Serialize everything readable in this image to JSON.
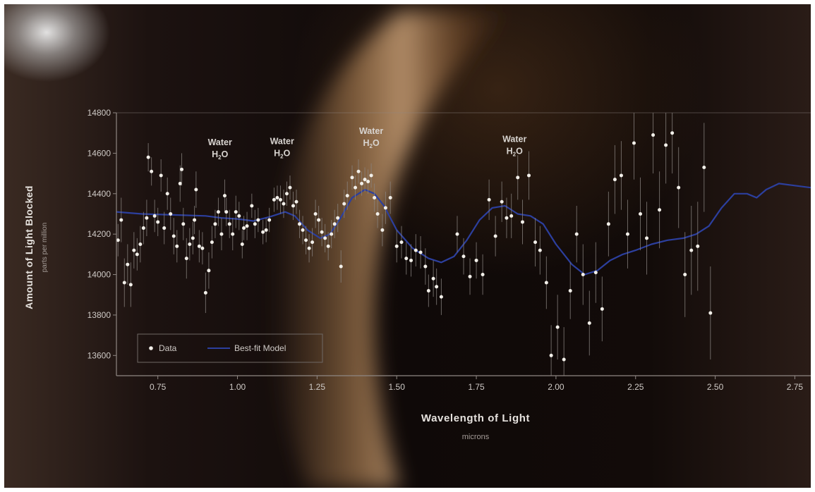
{
  "chart_data": {
    "type": "scatter",
    "xlabel": "Wavelength of Light",
    "xunit": "microns",
    "ylabel": "Amount of Light Blocked",
    "yunit": "parts per million",
    "xlim": [
      0.62,
      2.8
    ],
    "ylim": [
      13500,
      14800
    ],
    "xticks": [
      0.75,
      1.0,
      1.25,
      1.5,
      1.75,
      2.0,
      2.25,
      2.5,
      2.75
    ],
    "xtick_labels": [
      "0.75",
      "1.00",
      "1.25",
      "1.50",
      "1.75",
      "2.00",
      "2.25",
      "2.50",
      "2.75"
    ],
    "yticks": [
      13600,
      13800,
      14000,
      14200,
      14400,
      14600,
      14800
    ],
    "ytick_labels": [
      "13600",
      "13800",
      "14000",
      "14200",
      "14400",
      "14600",
      "14800"
    ],
    "grid": false,
    "legend": {
      "placement": "bottom-left",
      "entries": [
        {
          "label": "Data",
          "marker": "dot"
        },
        {
          "label": "Best-fit Model",
          "marker": "line"
        }
      ]
    },
    "colors": {
      "data": "#f2efe9",
      "errorbar": "#8a8480",
      "model": "#2c3f9e",
      "axis": "#8f8783"
    },
    "annotations": [
      {
        "line1": "Water",
        "molecule": "H",
        "subscript": "2",
        "suffix": "O",
        "x": 0.945,
        "y": 14640
      },
      {
        "line1": "Water",
        "molecule": "H",
        "subscript": "2",
        "suffix": "O",
        "x": 1.14,
        "y": 14645
      },
      {
        "line1": "Water",
        "molecule": "H",
        "subscript": "2",
        "suffix": "O",
        "x": 1.42,
        "y": 14695
      },
      {
        "line1": "Water",
        "molecule": "H",
        "subscript": "2",
        "suffix": "O",
        "x": 1.87,
        "y": 14655
      }
    ],
    "series": [
      {
        "name": "Data",
        "points": [
          [
            0.625,
            14170,
            80
          ],
          [
            0.635,
            14270,
            110
          ],
          [
            0.645,
            13960,
            120
          ],
          [
            0.655,
            14050,
            100
          ],
          [
            0.665,
            13950,
            110
          ],
          [
            0.675,
            14120,
            90
          ],
          [
            0.685,
            14100,
            80
          ],
          [
            0.695,
            14150,
            90
          ],
          [
            0.705,
            14230,
            80
          ],
          [
            0.715,
            14280,
            90
          ],
          [
            0.72,
            14580,
            70
          ],
          [
            0.73,
            14510,
            70
          ],
          [
            0.74,
            14290,
            80
          ],
          [
            0.75,
            14260,
            70
          ],
          [
            0.76,
            14490,
            80
          ],
          [
            0.77,
            14230,
            80
          ],
          [
            0.78,
            14400,
            80
          ],
          [
            0.79,
            14300,
            80
          ],
          [
            0.8,
            14190,
            90
          ],
          [
            0.81,
            14140,
            80
          ],
          [
            0.82,
            14450,
            90
          ],
          [
            0.825,
            14520,
            80
          ],
          [
            0.83,
            14250,
            80
          ],
          [
            0.84,
            14080,
            100
          ],
          [
            0.85,
            14150,
            80
          ],
          [
            0.86,
            14180,
            80
          ],
          [
            0.865,
            14270,
            70
          ],
          [
            0.87,
            14420,
            90
          ],
          [
            0.88,
            14140,
            80
          ],
          [
            0.89,
            14130,
            80
          ],
          [
            0.9,
            13910,
            100
          ],
          [
            0.91,
            14020,
            90
          ],
          [
            0.92,
            14160,
            80
          ],
          [
            0.93,
            14250,
            70
          ],
          [
            0.94,
            14310,
            70
          ],
          [
            0.95,
            14200,
            80
          ],
          [
            0.96,
            14390,
            80
          ],
          [
            0.965,
            14310,
            70
          ],
          [
            0.975,
            14250,
            70
          ],
          [
            0.985,
            14200,
            80
          ],
          [
            0.995,
            14310,
            80
          ],
          [
            1.005,
            14290,
            70
          ],
          [
            1.015,
            14150,
            70
          ],
          [
            1.02,
            14230,
            60
          ],
          [
            1.03,
            14240,
            70
          ],
          [
            1.045,
            14340,
            60
          ],
          [
            1.055,
            14250,
            70
          ],
          [
            1.065,
            14270,
            60
          ],
          [
            1.08,
            14210,
            60
          ],
          [
            1.09,
            14220,
            60
          ],
          [
            1.1,
            14270,
            60
          ],
          [
            1.115,
            14370,
            60
          ],
          [
            1.125,
            14380,
            60
          ],
          [
            1.135,
            14370,
            70
          ],
          [
            1.145,
            14350,
            70
          ],
          [
            1.155,
            14400,
            60
          ],
          [
            1.165,
            14430,
            60
          ],
          [
            1.175,
            14340,
            70
          ],
          [
            1.185,
            14360,
            60
          ],
          [
            1.195,
            14250,
            70
          ],
          [
            1.205,
            14220,
            70
          ],
          [
            1.215,
            14170,
            70
          ],
          [
            1.225,
            14130,
            70
          ],
          [
            1.235,
            14160,
            70
          ],
          [
            1.245,
            14300,
            70
          ],
          [
            1.255,
            14270,
            70
          ],
          [
            1.265,
            14210,
            70
          ],
          [
            1.275,
            14180,
            70
          ],
          [
            1.285,
            14140,
            70
          ],
          [
            1.295,
            14200,
            70
          ],
          [
            1.305,
            14250,
            70
          ],
          [
            1.315,
            14280,
            70
          ],
          [
            1.325,
            14040,
            80
          ],
          [
            1.335,
            14350,
            70
          ],
          [
            1.345,
            14390,
            70
          ],
          [
            1.36,
            14480,
            60
          ],
          [
            1.37,
            14430,
            60
          ],
          [
            1.38,
            14510,
            60
          ],
          [
            1.39,
            14450,
            60
          ],
          [
            1.4,
            14470,
            60
          ],
          [
            1.41,
            14460,
            60
          ],
          [
            1.42,
            14490,
            60
          ],
          [
            1.43,
            14380,
            70
          ],
          [
            1.44,
            14300,
            70
          ],
          [
            1.455,
            14220,
            80
          ],
          [
            1.465,
            14330,
            80
          ],
          [
            1.48,
            14380,
            80
          ],
          [
            1.5,
            14140,
            80
          ],
          [
            1.515,
            14160,
            80
          ],
          [
            1.53,
            14080,
            80
          ],
          [
            1.545,
            14070,
            80
          ],
          [
            1.56,
            14120,
            80
          ],
          [
            1.575,
            14110,
            80
          ],
          [
            1.59,
            14040,
            90
          ],
          [
            1.6,
            13920,
            80
          ],
          [
            1.615,
            13980,
            90
          ],
          [
            1.625,
            13940,
            90
          ],
          [
            1.64,
            13890,
            90
          ],
          [
            1.69,
            14200,
            90
          ],
          [
            1.71,
            14090,
            90
          ],
          [
            1.73,
            13990,
            90
          ],
          [
            1.75,
            14070,
            90
          ],
          [
            1.77,
            14000,
            100
          ],
          [
            1.79,
            14370,
            100
          ],
          [
            1.81,
            14190,
            100
          ],
          [
            1.83,
            14360,
            100
          ],
          [
            1.845,
            14280,
            100
          ],
          [
            1.86,
            14290,
            110
          ],
          [
            1.88,
            14480,
            110
          ],
          [
            1.895,
            14260,
            110
          ],
          [
            1.915,
            14490,
            120
          ],
          [
            1.935,
            14160,
            120
          ],
          [
            1.95,
            14120,
            120
          ],
          [
            1.97,
            13960,
            130
          ],
          [
            1.985,
            13600,
            150
          ],
          [
            2.005,
            13740,
            160
          ],
          [
            2.025,
            13580,
            160
          ],
          [
            2.045,
            13920,
            140
          ],
          [
            2.065,
            14200,
            140
          ],
          [
            2.085,
            14000,
            150
          ],
          [
            2.105,
            13760,
            160
          ],
          [
            2.125,
            14010,
            150
          ],
          [
            2.145,
            13830,
            160
          ],
          [
            2.165,
            14250,
            160
          ],
          [
            2.185,
            14470,
            170
          ],
          [
            2.205,
            14490,
            170
          ],
          [
            2.225,
            14200,
            170
          ],
          [
            2.245,
            14650,
            180
          ],
          [
            2.265,
            14300,
            180
          ],
          [
            2.285,
            14180,
            180
          ],
          [
            2.305,
            14690,
            190
          ],
          [
            2.325,
            14320,
            190
          ],
          [
            2.345,
            14640,
            190
          ],
          [
            2.365,
            14700,
            200
          ],
          [
            2.385,
            14430,
            200
          ],
          [
            2.405,
            14000,
            210
          ],
          [
            2.425,
            14120,
            220
          ],
          [
            2.445,
            14140,
            220
          ],
          [
            2.465,
            14530,
            220
          ],
          [
            2.485,
            13810,
            230
          ]
        ]
      },
      {
        "name": "Best-fit Model",
        "points": [
          [
            0.62,
            14310
          ],
          [
            0.7,
            14300
          ],
          [
            0.8,
            14295
          ],
          [
            0.9,
            14290
          ],
          [
            0.95,
            14280
          ],
          [
            1.0,
            14275
          ],
          [
            1.05,
            14265
          ],
          [
            1.1,
            14285
          ],
          [
            1.15,
            14310
          ],
          [
            1.18,
            14290
          ],
          [
            1.22,
            14220
          ],
          [
            1.26,
            14180
          ],
          [
            1.29,
            14200
          ],
          [
            1.32,
            14270
          ],
          [
            1.36,
            14380
          ],
          [
            1.4,
            14420
          ],
          [
            1.43,
            14400
          ],
          [
            1.46,
            14340
          ],
          [
            1.5,
            14220
          ],
          [
            1.55,
            14130
          ],
          [
            1.6,
            14080
          ],
          [
            1.64,
            14060
          ],
          [
            1.68,
            14090
          ],
          [
            1.72,
            14170
          ],
          [
            1.76,
            14270
          ],
          [
            1.8,
            14330
          ],
          [
            1.84,
            14340
          ],
          [
            1.88,
            14300
          ],
          [
            1.92,
            14290
          ],
          [
            1.96,
            14250
          ],
          [
            2.0,
            14150
          ],
          [
            2.05,
            14050
          ],
          [
            2.09,
            14000
          ],
          [
            2.13,
            14020
          ],
          [
            2.17,
            14070
          ],
          [
            2.21,
            14100
          ],
          [
            2.25,
            14120
          ],
          [
            2.3,
            14150
          ],
          [
            2.35,
            14170
          ],
          [
            2.4,
            14180
          ],
          [
            2.44,
            14200
          ],
          [
            2.48,
            14240
          ],
          [
            2.52,
            14330
          ],
          [
            2.56,
            14400
          ],
          [
            2.6,
            14400
          ],
          [
            2.63,
            14380
          ],
          [
            2.66,
            14420
          ],
          [
            2.7,
            14450
          ],
          [
            2.75,
            14440
          ],
          [
            2.8,
            14430
          ]
        ]
      }
    ]
  }
}
